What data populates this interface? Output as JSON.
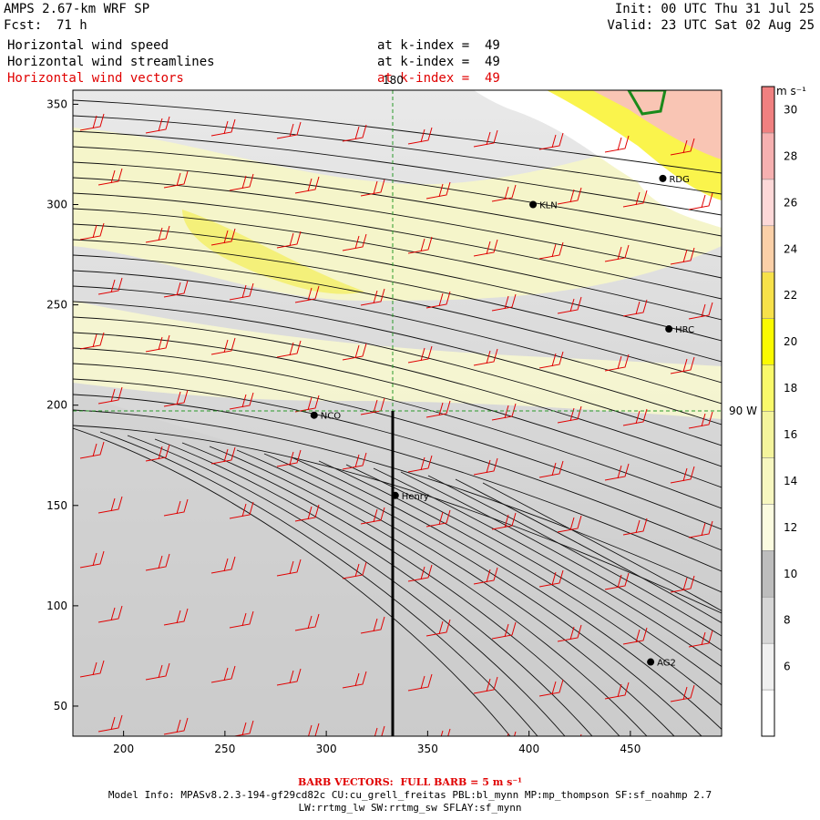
{
  "header": {
    "title": "AMPS 2.67-km WRF SP",
    "forecast_label": "Fcst:",
    "forecast_hours": "71 h",
    "init": "Init: 00 UTC Thu 31 Jul 25",
    "valid": "Valid: 23 UTC Sat 02 Aug 25"
  },
  "fields": [
    {
      "name": "Horizontal wind speed",
      "level": "at k-index =  49",
      "color": "#000000"
    },
    {
      "name": "Horizontal wind streamlines",
      "level": "at k-index =  49",
      "color": "#000000"
    },
    {
      "name": "Horizontal wind vectors",
      "level": "at k-index =  49",
      "color": "#e00000"
    }
  ],
  "map": {
    "x_ticks": [
      200,
      250,
      300,
      350,
      400,
      450
    ],
    "y_ticks": [
      50,
      100,
      150,
      200,
      250,
      300,
      350
    ],
    "x_range": [
      175,
      495
    ],
    "y_range": [
      35,
      357
    ],
    "meridian_label": "180",
    "parallel_label": "90 W",
    "stations": [
      {
        "name": "NCO",
        "x": 294,
        "y": 195
      },
      {
        "name": "Henry",
        "x": 334,
        "y": 155
      },
      {
        "name": "KLN",
        "x": 402,
        "y": 300
      },
      {
        "name": "RDG",
        "x": 466,
        "y": 313
      },
      {
        "name": "HRC",
        "x": 469,
        "y": 238
      },
      {
        "name": "AG2",
        "x": 460,
        "y": 72
      }
    ]
  },
  "colorbar": {
    "unit": "m s⁻¹",
    "labels": [
      "6",
      "8",
      "10",
      "12",
      "14",
      "16",
      "18",
      "20",
      "22",
      "24",
      "26",
      "28",
      "30"
    ],
    "colors": [
      "#ffffff",
      "#f0f0f0",
      "#d6d6d6",
      "#bdbdbd",
      "#fbfbe0",
      "#f7f7c0",
      "#f4f49c",
      "#f9f96a",
      "#fafa00",
      "#f7e14a",
      "#fbd0a8",
      "#fdd8d8",
      "#f6b0b0",
      "#f08080"
    ]
  },
  "footer": {
    "barb": "BARB VECTORS:  FULL BARB = 5 m s⁻¹",
    "model_info": "Model Info: MPASv8.2.3-194-gf29cd82c CU:cu_grell_freitas PBL:bl_mynn MP:mp_thompson SF:sf_noahmp 2.7",
    "model_info2": "LW:rrtmg_lw SW:rrtmg_sw SFLAY:sf_mynn"
  }
}
